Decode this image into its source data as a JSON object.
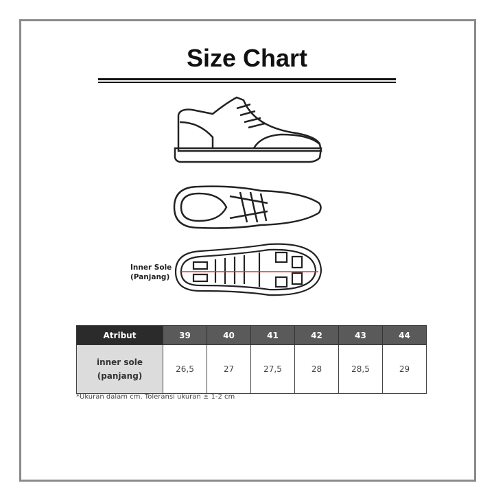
{
  "title": "Size Chart",
  "diagram": {
    "label_line1": "Inner Sole",
    "label_line2": "(Panjang)",
    "measure_color": "#e03030"
  },
  "table": {
    "header": [
      "Atribut",
      "39",
      "40",
      "41",
      "42",
      "43",
      "44"
    ],
    "row_label_line1": "inner sole",
    "row_label_line2": "(panjang)",
    "values": [
      "26,5",
      "27",
      "27,5",
      "28",
      "28,5",
      "29"
    ]
  },
  "note": "*Ukuran dalam cm. Toleransi ukuran ± 1-2 cm"
}
